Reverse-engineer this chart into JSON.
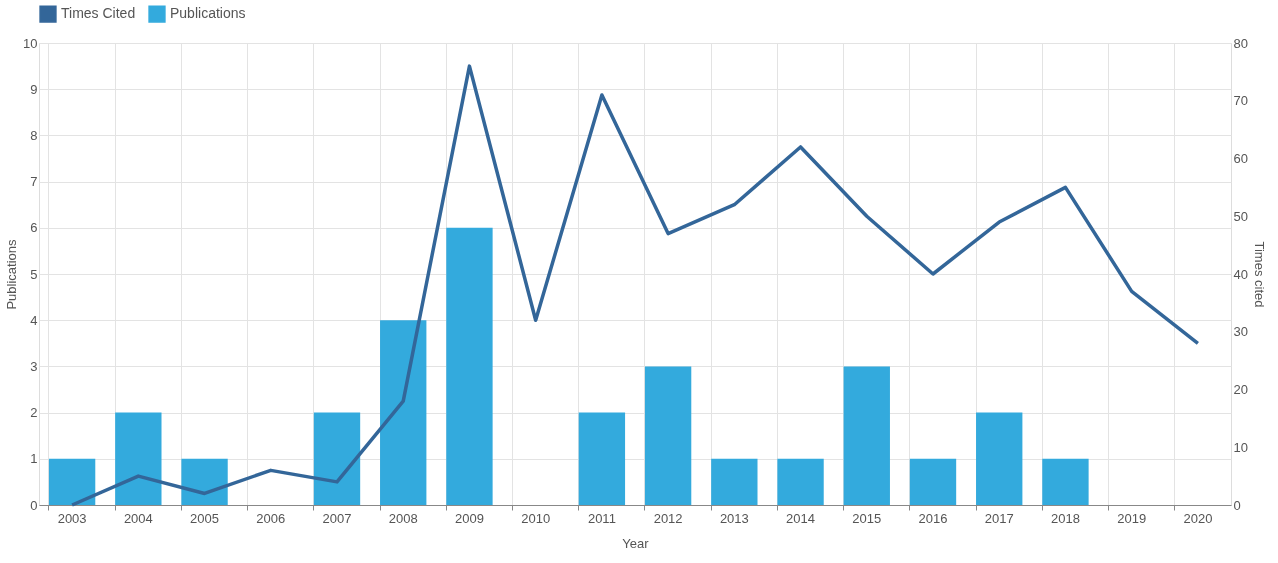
{
  "chart_data": {
    "type": "bar",
    "xlabel": "Year",
    "ylabel": "Publications",
    "y2label": "Times cited",
    "categories": [
      "2003",
      "2004",
      "2005",
      "2006",
      "2007",
      "2008",
      "2009",
      "2010",
      "2011",
      "2012",
      "2013",
      "2014",
      "2015",
      "2016",
      "2017",
      "2018",
      "2019",
      "2020"
    ],
    "series": [
      {
        "name": "Times Cited",
        "type": "line",
        "axis": "y2",
        "color": "#336699",
        "values": [
          0,
          5,
          2,
          6,
          4,
          18,
          76,
          32,
          71,
          47,
          52,
          62,
          50,
          40,
          49,
          55,
          37,
          28
        ]
      },
      {
        "name": "Publications",
        "color": "#33aadd",
        "values": [
          1,
          2,
          1,
          0,
          2,
          4,
          6,
          0,
          2,
          3,
          1,
          1,
          3,
          1,
          2,
          1,
          0,
          0
        ]
      }
    ],
    "ylim": [
      0,
      10
    ],
    "yticks": [
      0,
      1,
      2,
      3,
      4,
      5,
      6,
      7,
      8,
      9,
      10
    ],
    "y2lim": [
      0,
      80
    ],
    "y2ticks": [
      0,
      10,
      20,
      30,
      40,
      50,
      60,
      70,
      80
    ],
    "grid": true,
    "legend": "top",
    "marker": "none",
    "line_style": "solid"
  }
}
